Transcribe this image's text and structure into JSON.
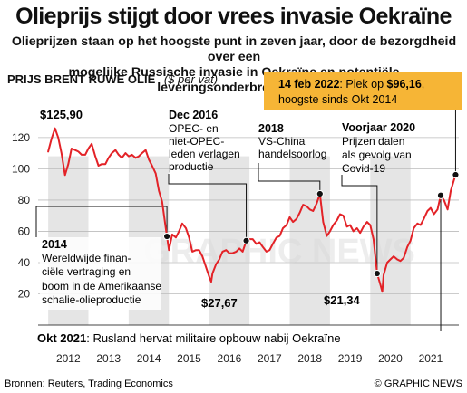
{
  "header": {
    "title": "Olieprijs stijgt door vrees invasie Oekraïne",
    "subtitle_line1": "Olieprijzen staan op het hoogste punt in zeven jaar, door de bezorgdheid over een",
    "subtitle_line2": "mogelijke Russische invasie in Oekraïne en potentiële leveringsonderbrekingen"
  },
  "chart_data": {
    "type": "line",
    "title": "PRIJS BRENT RUWE OLIE",
    "unit": "($ per vat)",
    "xlabel": "",
    "ylabel": "",
    "ylim": [
      0,
      135
    ],
    "xlim": [
      2011.75,
      2022.2
    ],
    "y_ticks": [
      0,
      20,
      40,
      60,
      80,
      100,
      120
    ],
    "x_ticks": [
      "2012",
      "2013",
      "2014",
      "2015",
      "2016",
      "2017",
      "2018",
      "2019",
      "2020",
      "2021"
    ],
    "grid": "horizontal",
    "series_color": "#e32227",
    "series": [
      {
        "x": [
          2012.0,
          2012.08,
          2012.17,
          2012.25,
          2012.33,
          2012.42,
          2012.5,
          2012.58,
          2012.67,
          2012.75,
          2012.83,
          2012.92,
          2013.0,
          2013.08,
          2013.17,
          2013.25,
          2013.33,
          2013.42,
          2013.5,
          2013.58,
          2013.67,
          2013.75,
          2013.83,
          2013.92,
          2014.0,
          2014.08,
          2014.17,
          2014.25,
          2014.33,
          2014.42,
          2014.5,
          2014.58,
          2014.67,
          2014.75,
          2014.83,
          2014.92,
          2015.0,
          2015.08,
          2015.17,
          2015.25,
          2015.33,
          2015.42,
          2015.5,
          2015.58,
          2015.67,
          2015.75,
          2015.83,
          2015.92,
          2016.0,
          2016.05,
          2016.08,
          2016.17,
          2016.25,
          2016.33,
          2016.42,
          2016.5,
          2016.58,
          2016.67,
          2016.75,
          2016.83,
          2016.92,
          2017.0,
          2017.08,
          2017.17,
          2017.25,
          2017.33,
          2017.42,
          2017.5,
          2017.58,
          2017.67,
          2017.75,
          2017.83,
          2017.92,
          2018.0,
          2018.08,
          2018.17,
          2018.25,
          2018.33,
          2018.42,
          2018.5,
          2018.58,
          2018.67,
          2018.75,
          2018.83,
          2018.92,
          2019.0,
          2019.08,
          2019.17,
          2019.25,
          2019.33,
          2019.42,
          2019.5,
          2019.58,
          2019.67,
          2019.75,
          2019.83,
          2019.92,
          2020.0,
          2020.08,
          2020.17,
          2020.25,
          2020.3,
          2020.33,
          2020.42,
          2020.5,
          2020.58,
          2020.67,
          2020.75,
          2020.83,
          2020.92,
          2021.0,
          2021.08,
          2021.17,
          2021.25,
          2021.33,
          2021.42,
          2021.5,
          2021.58,
          2021.67,
          2021.75,
          2021.83,
          2021.92,
          2022.0,
          2022.12
        ],
        "values": [
          111,
          119,
          125.9,
          120,
          110,
          96,
          103,
          113,
          112,
          111,
          109,
          109,
          113,
          116,
          108,
          102,
          103,
          103,
          107,
          110,
          112,
          109,
          107,
          110,
          108,
          109,
          107,
          108,
          110,
          112,
          106,
          102,
          97,
          86,
          79,
          62,
          48,
          58,
          56,
          60,
          65,
          62,
          56,
          47,
          48,
          48,
          44,
          37,
          31,
          27.67,
          33,
          39,
          42,
          47,
          48,
          46,
          46,
          47,
          49,
          47,
          54,
          55,
          55,
          52,
          53,
          50,
          47,
          48,
          52,
          56,
          57,
          62,
          64,
          69,
          66,
          68,
          72,
          77,
          76,
          74,
          73,
          78,
          84,
          66,
          57,
          60,
          64,
          67,
          71,
          70,
          63,
          64,
          60,
          62,
          59,
          63,
          66,
          64,
          55,
          33,
          26,
          21.34,
          32,
          40,
          42,
          44,
          42,
          41,
          43,
          50,
          54,
          62,
          65,
          64,
          68,
          73,
          75,
          71,
          74,
          83,
          80,
          74,
          86,
          96.16
        ]
      }
    ],
    "annotations": [
      {
        "value_label": "$125,90"
      },
      {
        "date": "Dec 2016",
        "text": [
          "OPEC- en",
          "niet-OPEC-",
          "leden verlagen",
          "productie"
        ]
      },
      {
        "date": "2018",
        "text": [
          "VS-China",
          "handelsoorlog"
        ]
      },
      {
        "date": "Voorjaar 2020",
        "text": [
          "Prijzen dalen",
          "als gevolg van",
          "Covid-19"
        ]
      },
      {
        "date": "2014",
        "text": [
          "Wereldwijde finan-",
          "ciële vertraging en",
          "boom in de Amerikaanse",
          "schalie-olieproductie"
        ]
      },
      {
        "value_label": "$27,67"
      },
      {
        "value_label": "$21,34"
      },
      {
        "date": "Okt 2021",
        "text": "Rusland hervat militaire opbouw nabij Oekraïne"
      },
      {
        "date": "14 feb 2022",
        "text_before": ": Piek op ",
        "value": "$96,16",
        "text_after": ",",
        "line2": "hoogste sinds Okt 2014"
      }
    ]
  },
  "footer": {
    "source": "Bronnen: Reuters, Trading Economics",
    "credit": "© GRAPHIC NEWS"
  },
  "watermark": "GRAPHIC NEWS",
  "colors": {
    "line": "#e32227",
    "callout_box": "#f6b536",
    "year_band": "#e5e5e5",
    "grid": "#bbbbbb"
  }
}
